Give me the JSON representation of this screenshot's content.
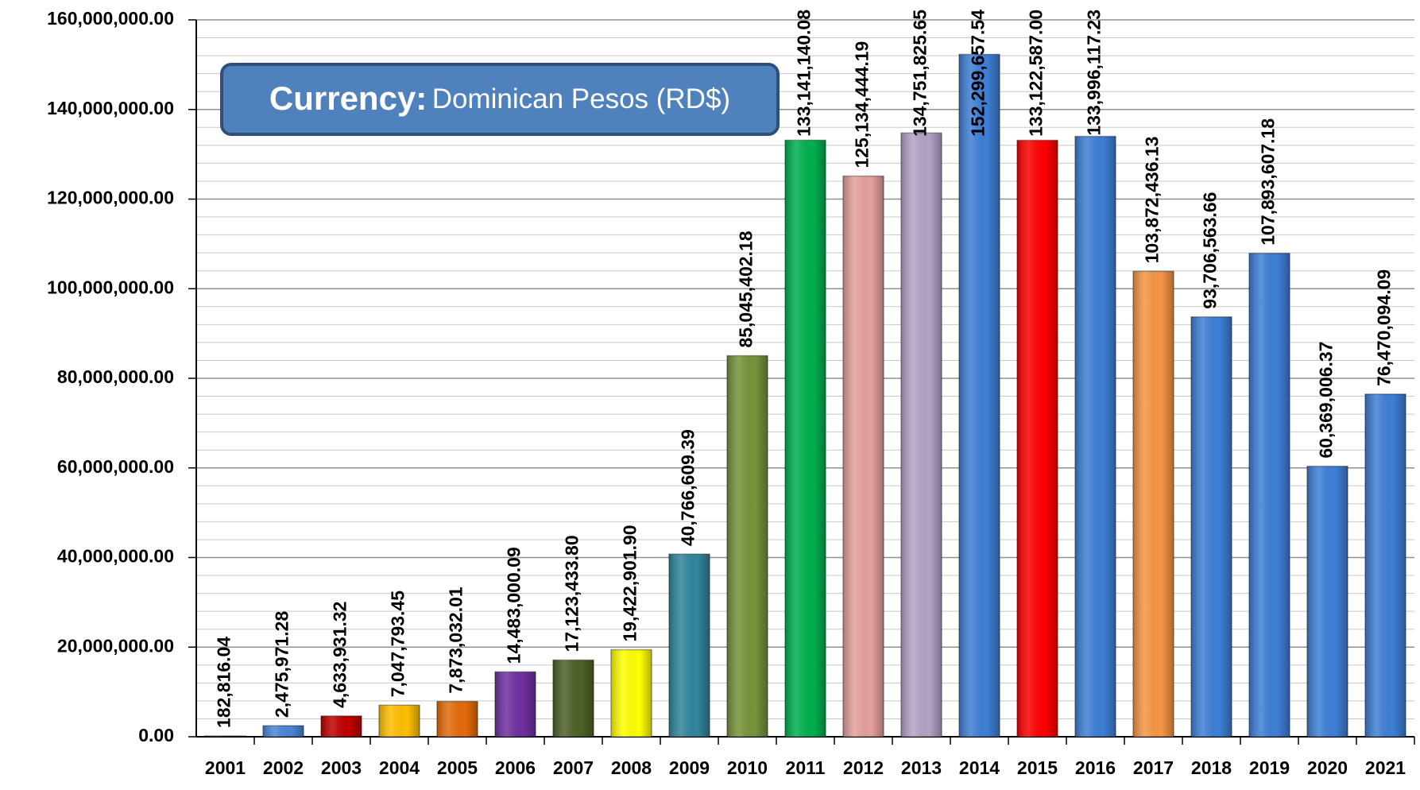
{
  "chart_data": {
    "type": "bar",
    "annotation": {
      "label": "Currency:",
      "text": "Dominican Pesos (RD$)"
    },
    "categories": [
      "2001",
      "2002",
      "2003",
      "2004",
      "2005",
      "2006",
      "2007",
      "2008",
      "2009",
      "2010",
      "2011",
      "2012",
      "2013",
      "2014",
      "2015",
      "2016",
      "2017",
      "2018",
      "2019",
      "2020",
      "2021"
    ],
    "values": [
      182816.04,
      2475971.28,
      4633931.32,
      7047793.45,
      7873032.01,
      14483000.09,
      17123433.8,
      19422901.9,
      40766609.39,
      85045402.18,
      133141140.08,
      125134444.19,
      134751825.65,
      152299657.54,
      133122587.0,
      133996117.23,
      103872436.13,
      93706563.66,
      107893607.18,
      60369006.37,
      76470094.09
    ],
    "value_labels": [
      "182,816.04",
      "2,475,971.28",
      "4,633,931.32",
      "7,047,793.45",
      "7,873,032.01",
      "14,483,000.09",
      "17,123,433.80",
      "19,422,901.90",
      "40,766,609.39",
      "85,045,402.18",
      "133,141,140.08",
      "125,134,444.19",
      "134,751,825.65",
      "152,299,657.54",
      "133,122,587.00",
      "133,996,117.23",
      "103,872,436.13",
      "93,706,563.66",
      "107,893,607.18",
      "60,369,006.37",
      "76,470,094.09"
    ],
    "colors": [
      "#1a1a1a",
      "#4a86d8",
      "#c00000",
      "#ffc000",
      "#e46c0a",
      "#7030a0",
      "#4f6228",
      "#ffff00",
      "#31859c",
      "#77933c",
      "#00b050",
      "#e6a09b",
      "#b3a2c7",
      "#3e7fd6",
      "#ff0000",
      "#3e7fd6",
      "#f79646",
      "#3e7fd6",
      "#3e7fd6",
      "#3e7fd6",
      "#3e7fd6"
    ],
    "ylim": [
      0,
      160000000
    ],
    "yticks": [
      {
        "value": 0,
        "label": "0.00"
      },
      {
        "value": 20000000,
        "label": "20,000,000.00"
      },
      {
        "value": 40000000,
        "label": "40,000,000.00"
      },
      {
        "value": 60000000,
        "label": "60,000,000.00"
      },
      {
        "value": 80000000,
        "label": "80,000,000.00"
      },
      {
        "value": 100000000,
        "label": "100,000,000.00"
      },
      {
        "value": 120000000,
        "label": "120,000,000.00"
      },
      {
        "value": 140000000,
        "label": "140,000,000.00"
      },
      {
        "value": 160000000,
        "label": "160,000,000.00"
      }
    ],
    "minor_yticks": [
      4000000,
      8000000,
      12000000,
      16000000,
      24000000,
      28000000,
      32000000,
      36000000,
      44000000,
      48000000,
      52000000,
      56000000,
      64000000,
      68000000,
      72000000,
      76000000,
      84000000,
      88000000,
      92000000,
      96000000,
      104000000,
      108000000,
      112000000,
      116000000,
      124000000,
      128000000,
      132000000,
      136000000,
      144000000,
      148000000,
      152000000,
      156000000
    ],
    "grid": true
  }
}
